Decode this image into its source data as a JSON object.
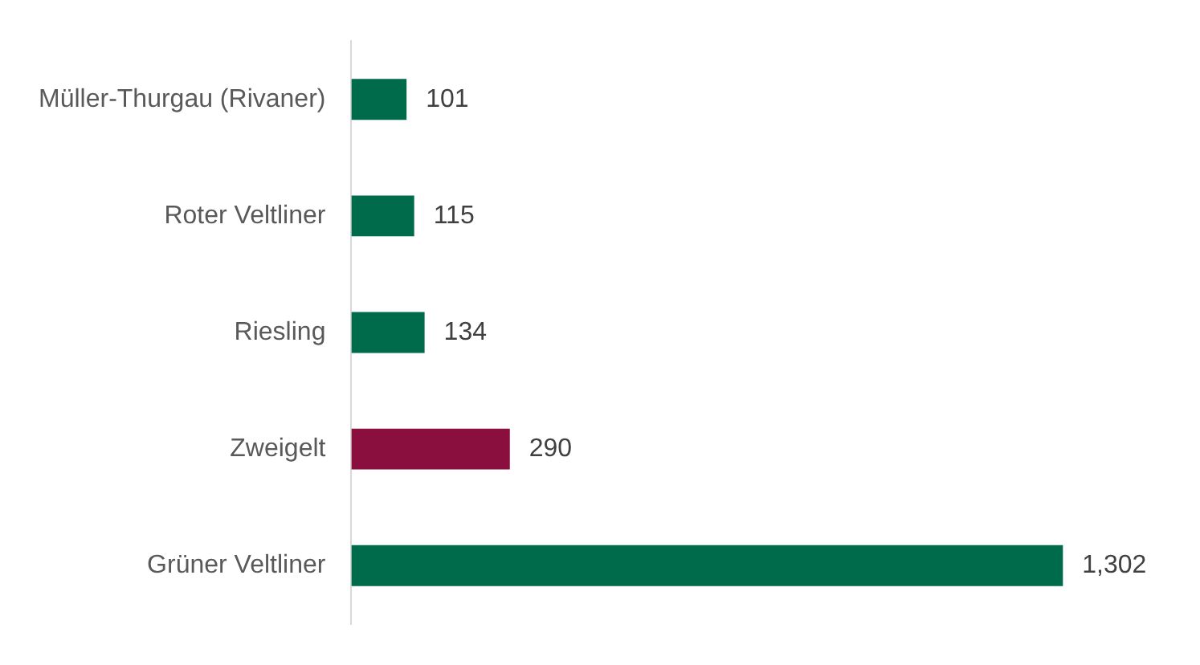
{
  "chart_data": {
    "type": "bar",
    "orientation": "horizontal",
    "categories": [
      "Müller-Thurgau (Rivaner)",
      "Roter Veltliner",
      "Riesling",
      "Zweigelt",
      "Grüner Veltliner"
    ],
    "values": [
      101,
      115,
      134,
      290,
      1302
    ],
    "colors": [
      "#006b4b",
      "#006b4b",
      "#006b4b",
      "#8a0e3e",
      "#006b4b"
    ],
    "value_labels": [
      "101",
      "115",
      "134",
      "290",
      "1,302"
    ],
    "legend": false,
    "tick_labels": "y"
  }
}
